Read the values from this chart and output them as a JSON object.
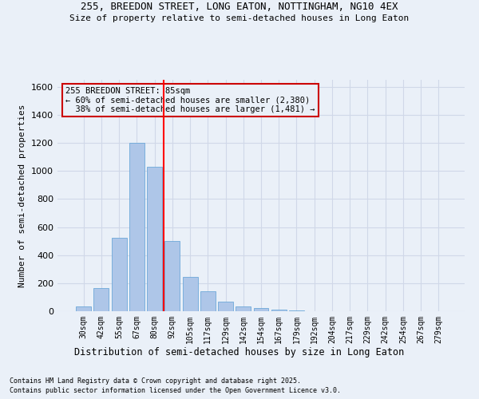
{
  "title_line1": "255, BREEDON STREET, LONG EATON, NOTTINGHAM, NG10 4EX",
  "title_line2": "Size of property relative to semi-detached houses in Long Eaton",
  "xlabel": "Distribution of semi-detached houses by size in Long Eaton",
  "ylabel": "Number of semi-detached properties",
  "footnote1": "Contains HM Land Registry data © Crown copyright and database right 2025.",
  "footnote2": "Contains public sector information licensed under the Open Government Licence v3.0.",
  "categories": [
    "30sqm",
    "42sqm",
    "55sqm",
    "67sqm",
    "80sqm",
    "92sqm",
    "105sqm",
    "117sqm",
    "129sqm",
    "142sqm",
    "154sqm",
    "167sqm",
    "179sqm",
    "192sqm",
    "204sqm",
    "217sqm",
    "229sqm",
    "242sqm",
    "254sqm",
    "267sqm",
    "279sqm"
  ],
  "values": [
    35,
    165,
    525,
    1200,
    1030,
    500,
    245,
    140,
    68,
    35,
    22,
    10,
    7,
    0,
    0,
    0,
    0,
    0,
    0,
    0,
    0
  ],
  "bar_color": "#aec6e8",
  "bar_edge_color": "#5a9fd4",
  "grid_color": "#d0d8e8",
  "bg_color": "#eaf0f8",
  "property_label": "255 BREEDON STREET: 85sqm",
  "pct_smaller": 60,
  "n_smaller": "2,380",
  "pct_larger": 38,
  "n_larger": "1,481",
  "vline_x": 4.5,
  "annotation_box_color": "#cc0000",
  "ylim": [
    0,
    1650
  ],
  "yticks": [
    0,
    200,
    400,
    600,
    800,
    1000,
    1200,
    1400,
    1600
  ]
}
